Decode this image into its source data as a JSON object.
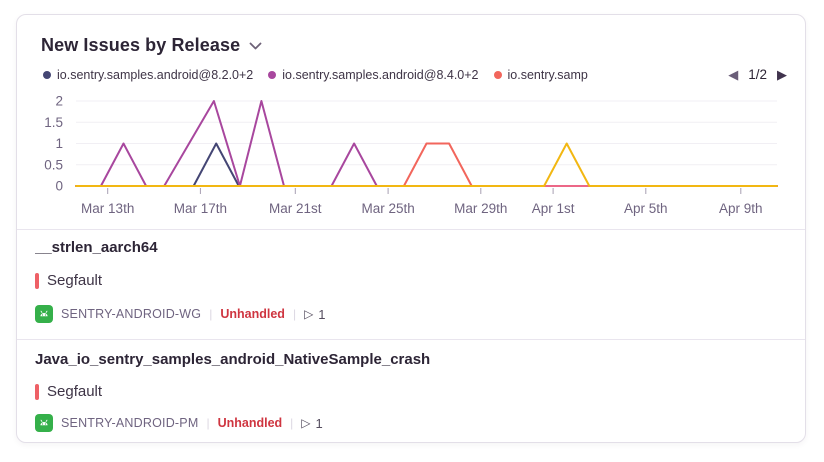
{
  "widget": {
    "title": "New Issues by Release",
    "pagination": {
      "label": "1/2"
    }
  },
  "legend": {
    "items": [
      {
        "label": "io.sentry.samples.android@8.2.0+2",
        "color": "#444674"
      },
      {
        "label": "io.sentry.samples.android@8.4.0+2",
        "color": "#a8479e"
      },
      {
        "label": "io.sentry.samp",
        "color": "#f2665c"
      }
    ]
  },
  "chart_data": {
    "type": "line",
    "title": "New Issues by Release",
    "xlabel": "",
    "ylabel": "",
    "y_range": [
      0,
      2
    ],
    "x_range_days": [
      0,
      31
    ],
    "grid": true,
    "legend_position": "top",
    "y_ticks": [
      {
        "label": "2",
        "value": 2
      },
      {
        "label": "1.5",
        "value": 1.5
      },
      {
        "label": "1",
        "value": 1
      },
      {
        "label": "0.5",
        "value": 0.5
      },
      {
        "label": "0",
        "value": 0
      }
    ],
    "x_ticks": [
      {
        "label": "Mar 13th",
        "day": 1.4
      },
      {
        "label": "Mar 17th",
        "day": 5.5
      },
      {
        "label": "Mar 21st",
        "day": 9.7
      },
      {
        "label": "Mar 25th",
        "day": 13.8
      },
      {
        "label": "Mar 29th",
        "day": 17.9
      },
      {
        "label": "Apr 1st",
        "day": 21.1
      },
      {
        "label": "Apr 5th",
        "day": 25.2
      },
      {
        "label": "Apr 9th",
        "day": 29.4
      }
    ],
    "series": [
      {
        "name": "io.sentry.samples.android@8.2.0+2",
        "color": "#444674",
        "points": [
          [
            0,
            0
          ],
          [
            5.2,
            0
          ],
          [
            6.2,
            1
          ],
          [
            7.2,
            0
          ],
          [
            31,
            0
          ]
        ]
      },
      {
        "name": "io.sentry.samples.android@8.4.0+2",
        "color": "#a8479e",
        "points": [
          [
            0,
            0
          ],
          [
            1.1,
            0
          ],
          [
            2.1,
            1
          ],
          [
            3.1,
            0
          ],
          [
            3.9,
            0
          ],
          [
            6.1,
            2
          ],
          [
            7.25,
            0
          ],
          [
            8.2,
            2
          ],
          [
            9.2,
            0
          ],
          [
            11.3,
            0
          ],
          [
            12.3,
            1
          ],
          [
            13.3,
            0
          ],
          [
            31,
            0
          ]
        ]
      },
      {
        "name": "io.sentry.samp",
        "color": "#f2665c",
        "points": [
          [
            0,
            0
          ],
          [
            14.5,
            0
          ],
          [
            15.5,
            1
          ],
          [
            16.5,
            1
          ],
          [
            17.5,
            0
          ],
          [
            31,
            0
          ]
        ]
      },
      {
        "name": "",
        "color": "#ec6787",
        "points": [
          [
            20.7,
            0
          ],
          [
            22.7,
            0
          ]
        ]
      },
      {
        "name": "",
        "color": "#f2b712",
        "points": [
          [
            0,
            0
          ],
          [
            20.7,
            0
          ],
          [
            21.7,
            1
          ],
          [
            22.7,
            0
          ],
          [
            31,
            0
          ]
        ]
      }
    ]
  },
  "issues": [
    {
      "title": "__strlen_aarch64",
      "subtitle": "Segfault",
      "project": "SENTRY-ANDROID-WG",
      "handled": "Unhandled",
      "events": "1"
    },
    {
      "title": "Java_io_sentry_samples_android_NativeSample_crash",
      "subtitle": "Segfault",
      "project": "SENTRY-ANDROID-PM",
      "handled": "Unhandled",
      "events": "1"
    }
  ],
  "separator": "|"
}
